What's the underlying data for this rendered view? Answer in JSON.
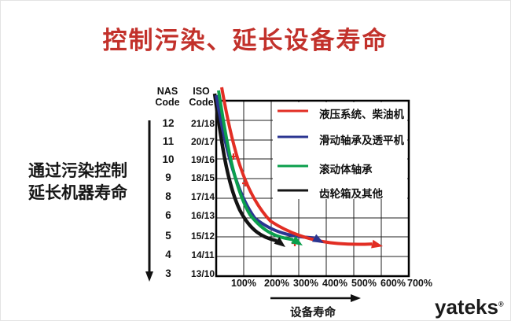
{
  "title": "控制污染、延长设备寿命",
  "left_caption": {
    "line1": "通过污染控制",
    "line2": "延长机器寿命"
  },
  "axis_headers": {
    "nas_line1": "NAS",
    "nas_line2": "Code",
    "iso_line1": "ISO",
    "iso_line2": "Code"
  },
  "chart_data": {
    "type": "line",
    "title": "",
    "xlabel": "设备寿命",
    "x_tick_labels": [
      "100%",
      "200%",
      "300%",
      "400%",
      "500%",
      "600%",
      "700%"
    ],
    "x_range_pct": [
      0,
      700
    ],
    "grid": true,
    "legend_position": "top-right",
    "y_rows": [
      {
        "nas": "12",
        "iso": "21/18"
      },
      {
        "nas": "11",
        "iso": "20/17"
      },
      {
        "nas": "10",
        "iso": "19/16"
      },
      {
        "nas": "9",
        "iso": "18/15"
      },
      {
        "nas": "8",
        "iso": "17/14"
      },
      {
        "nas": "6",
        "iso": "16/13"
      },
      {
        "nas": "5",
        "iso": "15/12"
      },
      {
        "nas": "4",
        "iso": "14/11"
      },
      {
        "nas": "3",
        "iso": "13/10"
      }
    ],
    "series": [
      {
        "name": "液压系统、柴油机",
        "color": "#e22e24",
        "shape": "exponential-decay",
        "start_level": "above 21/18",
        "start_pct": 5,
        "arrow_end_pct": 600,
        "end_level": "15/12"
      },
      {
        "name": "滑动轴承及透平机",
        "color": "#2b3591",
        "shape": "exponential-decay",
        "start_level": "above 21/18",
        "start_pct": 0,
        "arrow_end_pct": 390,
        "end_level": "15/12"
      },
      {
        "name": "滚动体轴承",
        "color": "#0b9f4c",
        "shape": "exponential-decay",
        "start_level": "above 21/18",
        "start_pct": 2,
        "arrow_end_pct": 310,
        "end_level": "15/12"
      },
      {
        "name": "齿轮箱及其他",
        "color": "#141414",
        "shape": "exponential-decay",
        "start_level": "above 21/18",
        "start_pct": 0,
        "arrow_end_pct": 260,
        "end_level": "15/12"
      }
    ],
    "point_markers": [
      {
        "glyph": "+",
        "color": "#e22e24",
        "life_pct": 63,
        "level": "19/16"
      },
      {
        "glyph": "+",
        "color": "#e22e24",
        "life_pct": 106,
        "level": "18/15"
      },
      {
        "glyph": "+",
        "color": "#e22e24",
        "life_pct": 286,
        "level": "15/12"
      }
    ]
  },
  "footer": {
    "logo_text": "yateks",
    "logo_mark": "®"
  }
}
